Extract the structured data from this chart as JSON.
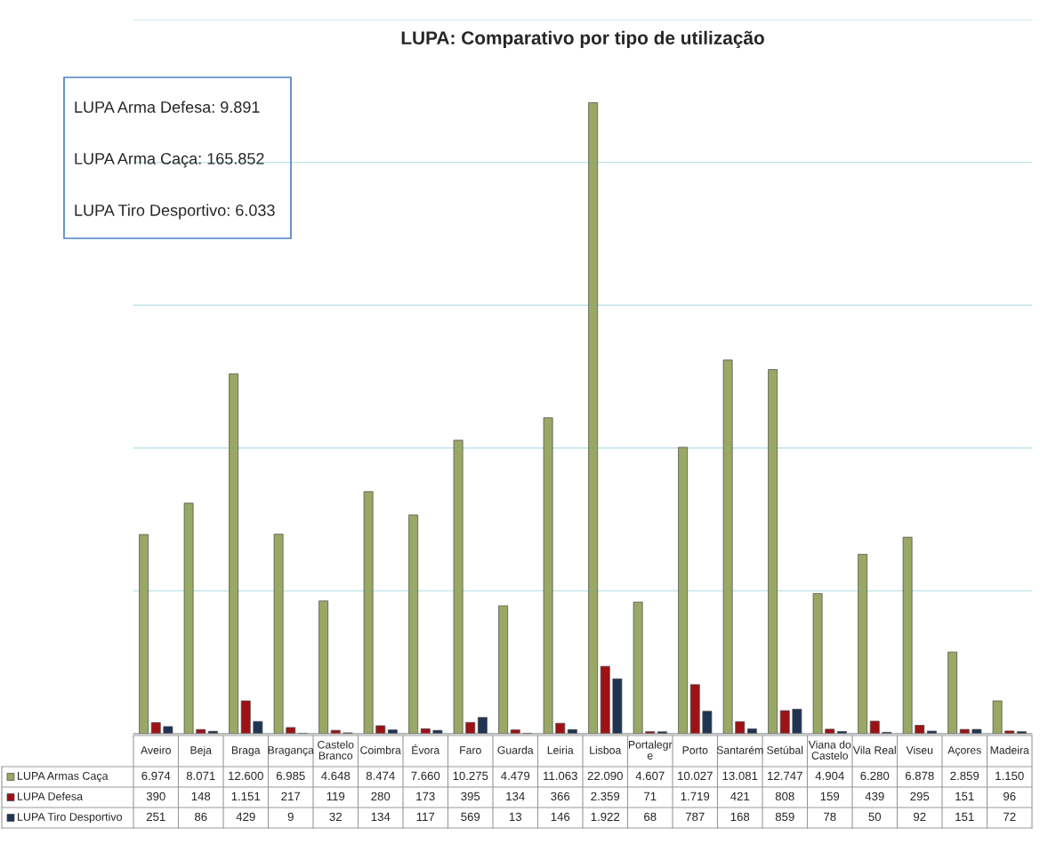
{
  "chart_data": {
    "type": "bar",
    "title": "LUPA: Comparativo por tipo de utilização",
    "categories": [
      "Aveiro",
      "Beja",
      "Braga",
      "Bragança",
      "Castelo\nBranco",
      "Coimbra",
      "Évora",
      "Faro",
      "Guarda",
      "Leiria",
      "Lisboa",
      "Portalegr\ne",
      "Porto",
      "Santarém",
      "Setúbal",
      "Viana do\nCastelo",
      "Vila Real",
      "Viseu",
      "Açores",
      "Madeira"
    ],
    "series": [
      {
        "name": "LUPA Armas Caça",
        "color": "#9aa865",
        "values": [
          6974,
          8071,
          12600,
          6985,
          4648,
          8474,
          7660,
          10275,
          4479,
          11063,
          22090,
          4607,
          10027,
          13081,
          12747,
          4904,
          6280,
          6878,
          2859,
          1150
        ],
        "value_labels": [
          "6.974",
          "8.071",
          "12.600",
          "6.985",
          "4.648",
          "8.474",
          "7.660",
          "10.275",
          "4.479",
          "11.063",
          "22.090",
          "4.607",
          "10.027",
          "13.081",
          "12.747",
          "4.904",
          "6.280",
          "6.878",
          "2.859",
          "1.150"
        ]
      },
      {
        "name": "LUPA Defesa",
        "color": "#9e1216",
        "values": [
          390,
          148,
          1151,
          217,
          119,
          280,
          173,
          395,
          134,
          366,
          2359,
          71,
          1719,
          421,
          808,
          159,
          439,
          295,
          151,
          96
        ],
        "value_labels": [
          "390",
          "148",
          "1.151",
          "217",
          "119",
          "280",
          "173",
          "395",
          "134",
          "366",
          "2.359",
          "71",
          "1.719",
          "421",
          "808",
          "159",
          "439",
          "295",
          "151",
          "96"
        ]
      },
      {
        "name": "LUPA Tiro Desportivo",
        "color": "#1f3552",
        "values": [
          251,
          86,
          429,
          9,
          32,
          134,
          117,
          569,
          13,
          146,
          1922,
          68,
          787,
          168,
          859,
          78,
          50,
          92,
          151,
          72
        ],
        "value_labels": [
          "251",
          "86",
          "429",
          "9",
          "32",
          "134",
          "117",
          "569",
          "13",
          "146",
          "1.922",
          "68",
          "787",
          "168",
          "859",
          "78",
          "50",
          "92",
          "151",
          "72"
        ]
      }
    ],
    "ylim": [
      0,
      25000
    ],
    "yticks": [
      {
        "value": 0,
        "label": null
      },
      {
        "value": 5000,
        "label": null
      },
      {
        "value": 10000,
        "label": null
      },
      {
        "value": 15000,
        "label": null
      },
      {
        "value": 20000,
        "label": null
      },
      {
        "value": 25000,
        "label": null
      }
    ],
    "grid": "y",
    "tick_labels": "x",
    "legend": "bottom",
    "annotations": [
      "LUPA Arma Defesa: 9.891",
      "LUPA Arma Caça: 165.852",
      "LUPA Tiro Desportivo: 6.033"
    ]
  }
}
